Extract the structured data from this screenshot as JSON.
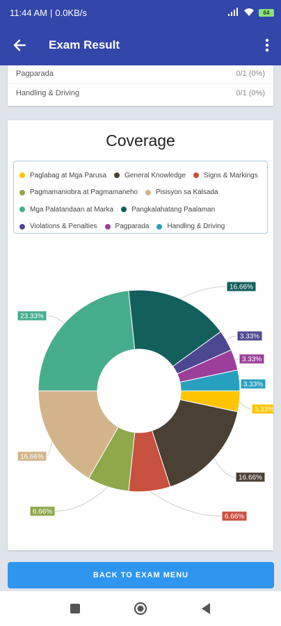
{
  "status_bar": {
    "time": "11:44 AM",
    "speed": "0.0KB/s",
    "battery": "64"
  },
  "app_bar": {
    "title": "Exam Result",
    "back_icon": "arrow-left-icon",
    "menu_icon": "more-vert-icon"
  },
  "results": [
    {
      "name": "Pagparada",
      "score": "0/1 (0%)"
    },
    {
      "name": "Handling & Driving",
      "score": "0/1 (0%)"
    }
  ],
  "coverage": {
    "title": "Coverage",
    "legend": [
      {
        "label": "Paglabag at Mga Parusa",
        "color": "#ffc400"
      },
      {
        "label": "General Knowledge",
        "color": "#4a4034"
      },
      {
        "label": "Signs & Markings",
        "color": "#c8503e"
      },
      {
        "label": "Pagmamaniobra at Pagmamaneho",
        "color": "#8ea84a"
      },
      {
        "label": "Pisisyon sa Kalsada",
        "color": "#d3b48a"
      },
      {
        "label": "Mga Palatandaan at Marka",
        "color": "#46ad8c"
      },
      {
        "label": "Pangkalahatang Paalaman",
        "color": "#125f5b"
      },
      {
        "label": "Violations & Penalties",
        "color": "#4c4790"
      },
      {
        "label": "Pagparada",
        "color": "#9b3f9b"
      },
      {
        "label": "Handling & Driving",
        "color": "#27a0bf"
      }
    ]
  },
  "chart_data": {
    "type": "pie",
    "categories": [
      "Paglabag at Mga Parusa",
      "General Knowledge",
      "Signs & Markings",
      "Pagmamaniobra at Pagmamaneho",
      "Pisisyon sa Kalsada",
      "Mga Palatandaan at Marka",
      "Pangkalahatang Paalaman",
      "Violations & Penalties",
      "Pagparada",
      "Handling & Driving"
    ],
    "values": [
      3.33,
      16.66,
      6.66,
      6.66,
      16.66,
      23.33,
      16.66,
      3.33,
      3.33,
      3.33
    ],
    "labels": [
      "3.33%",
      "16.66%",
      "6.66%",
      "6.66%",
      "16.66%",
      "23.33%",
      "16.66%",
      "3.33%",
      "3.33%",
      "3.33%"
    ],
    "colors": [
      "#ffc400",
      "#4a4034",
      "#c8503e",
      "#8ea84a",
      "#d3b48a",
      "#46ad8c",
      "#125f5b",
      "#4c4790",
      "#9b3f9b",
      "#27a0bf"
    ],
    "donut": true,
    "title": ""
  },
  "footer": {
    "button_label": "BACK TO EXAM MENU"
  },
  "nav": {
    "recents_icon": "square-icon",
    "home_icon": "circle-icon",
    "back_icon": "triangle-back-icon"
  }
}
